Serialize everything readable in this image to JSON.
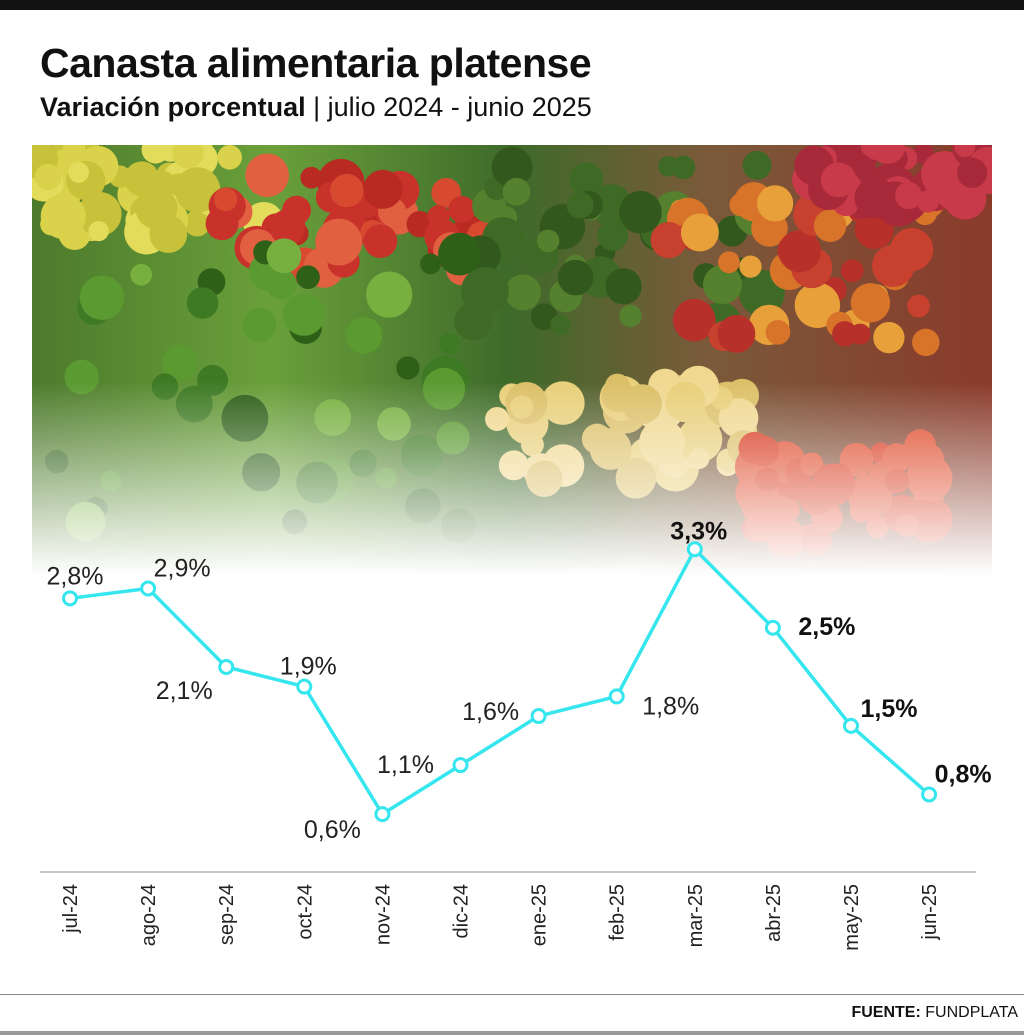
{
  "header": {
    "title": "Canasta alimentaria platense",
    "subtitle_bold": "Variación porcentual",
    "subtitle_sep": " | ",
    "subtitle_range": "julio 2024 - junio 2025"
  },
  "source": {
    "label": "FUENTE:",
    "value": "FUNDPLATA"
  },
  "colors": {
    "line": "#35e6ee",
    "text": "#111111"
  },
  "chart_data": {
    "type": "line",
    "title": "Canasta alimentaria platense",
    "subtitle": "Variación porcentual | julio 2024 - junio 2025",
    "xlabel": "",
    "ylabel": "",
    "categories": [
      "jul-24",
      "ago-24",
      "sep-24",
      "oct-24",
      "nov-24",
      "dic-24",
      "ene-25",
      "feb-25",
      "mar-25",
      "abr-25",
      "may-25",
      "jun-25"
    ],
    "values": [
      2.8,
      2.9,
      2.1,
      1.9,
      0.6,
      1.1,
      1.6,
      1.8,
      3.3,
      2.5,
      1.5,
      0.8
    ],
    "labels": [
      "2,8%",
      "2,9%",
      "2,1%",
      "1,9%",
      "0,6%",
      "1,1%",
      "1,6%",
      "1,8%",
      "3,3%",
      "2,5%",
      "1,5%",
      "0,8%"
    ],
    "bold_labels": [
      false,
      false,
      false,
      false,
      false,
      false,
      false,
      false,
      true,
      true,
      true,
      true
    ],
    "grid": false,
    "legend": "none"
  }
}
